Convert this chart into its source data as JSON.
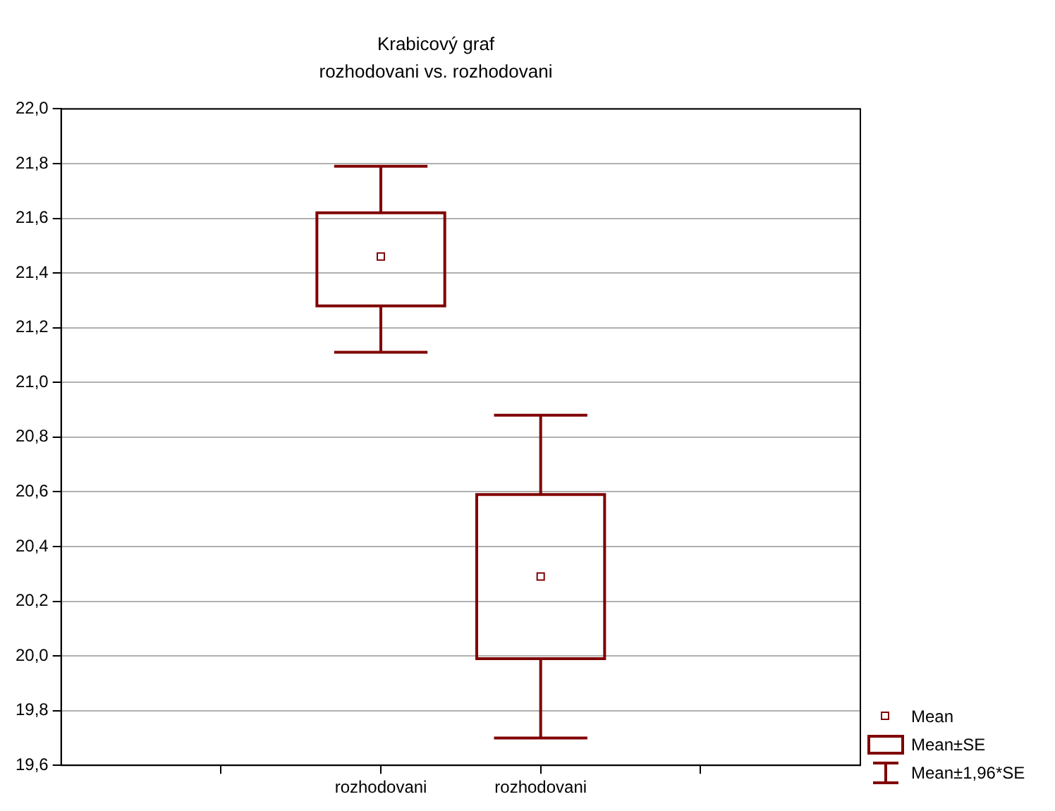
{
  "chart_data": {
    "type": "box",
    "title": "Krabicový graf",
    "subtitle": "rozhodovani vs. rozhodovani",
    "categories": [
      "rozhodovani",
      "rozhodovani"
    ],
    "series": [
      {
        "color": "#800000",
        "boxes": [
          {
            "low": 21.11,
            "q1": 21.28,
            "mean": 21.46,
            "q3": 21.62,
            "high": 21.79
          },
          {
            "low": 19.7,
            "q1": 19.99,
            "mean": 20.29,
            "q3": 20.59,
            "high": 20.88
          }
        ]
      }
    ],
    "ylim": [
      19.6,
      22.0
    ],
    "yticks": [
      {
        "value": 19.6,
        "label": "19,6"
      },
      {
        "value": 19.8,
        "label": "19,8"
      },
      {
        "value": 20.0,
        "label": "20,0"
      },
      {
        "value": 20.2,
        "label": "20,2"
      },
      {
        "value": 20.4,
        "label": "20,4"
      },
      {
        "value": 20.6,
        "label": "20,6"
      },
      {
        "value": 20.8,
        "label": "20,8"
      },
      {
        "value": 21.0,
        "label": "21,0"
      },
      {
        "value": 21.2,
        "label": "21,2"
      },
      {
        "value": 21.4,
        "label": "21,4"
      },
      {
        "value": 21.6,
        "label": "21,6"
      },
      {
        "value": 21.8,
        "label": "21,8"
      },
      {
        "value": 22.0,
        "label": "22,0"
      }
    ],
    "grid": "y",
    "marker": "square",
    "annotations": [
      "Mean",
      "Mean±SE",
      "Mean±1,96*SE"
    ]
  }
}
